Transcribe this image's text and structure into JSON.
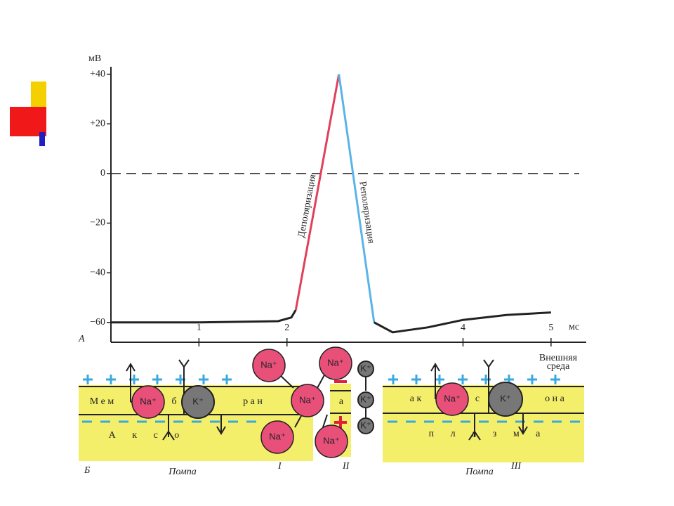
{
  "chart_data": {
    "type": "line",
    "y_label": "мВ",
    "x_label": "мс",
    "panel_label": "А",
    "xlim": [
      0,
      5.4
    ],
    "ylim": [
      -68,
      43
    ],
    "xticks": [
      1,
      2,
      4,
      5
    ],
    "yticks": [
      {
        "value": 40,
        "label": "+40"
      },
      {
        "value": 20,
        "label": "+20"
      },
      0,
      {
        "value": -20,
        "label": "−20"
      },
      {
        "value": -40,
        "label": "−40"
      },
      {
        "value": -60,
        "label": "−60"
      }
    ],
    "reference_line": {
      "value": 0,
      "style": "dashed"
    },
    "series": [
      {
        "color": "#222222",
        "x": [
          0,
          1,
          1.9,
          2.05,
          2.1
        ],
        "values": [
          -60,
          -60,
          -59.5,
          -58,
          -55
        ]
      },
      {
        "name": "Деполяризация",
        "color": "#e0405a",
        "x": [
          2.1,
          2.59
        ],
        "values": [
          -55,
          40
        ]
      },
      {
        "name": "Реполяризация",
        "color": "#5ab4e6",
        "x": [
          2.59,
          2.99
        ],
        "values": [
          40,
          -60
        ]
      },
      {
        "color": "#222222",
        "x": [
          2.99,
          3.2,
          3.6,
          4,
          4.5,
          5
        ],
        "values": [
          -60,
          -64,
          -62,
          -59,
          -57,
          -56
        ]
      }
    ]
  },
  "diagram": {
    "outer_medium": [
      "Внешняя",
      "среда"
    ],
    "membrane_left": [
      "М е м",
      "б",
      "р а н"
    ],
    "membrane_center": "а",
    "membrane_right": [
      "а к",
      "с",
      "о н а"
    ],
    "axon_left": "А к с о",
    "axon_right": "п л а з м а",
    "na_ion": "Na⁺",
    "k_ion": "K⁺",
    "panel_label": "Б",
    "pump_left": "Помпа",
    "pump_right": "Помпа",
    "roman": [
      "I",
      "II",
      "III"
    ]
  }
}
